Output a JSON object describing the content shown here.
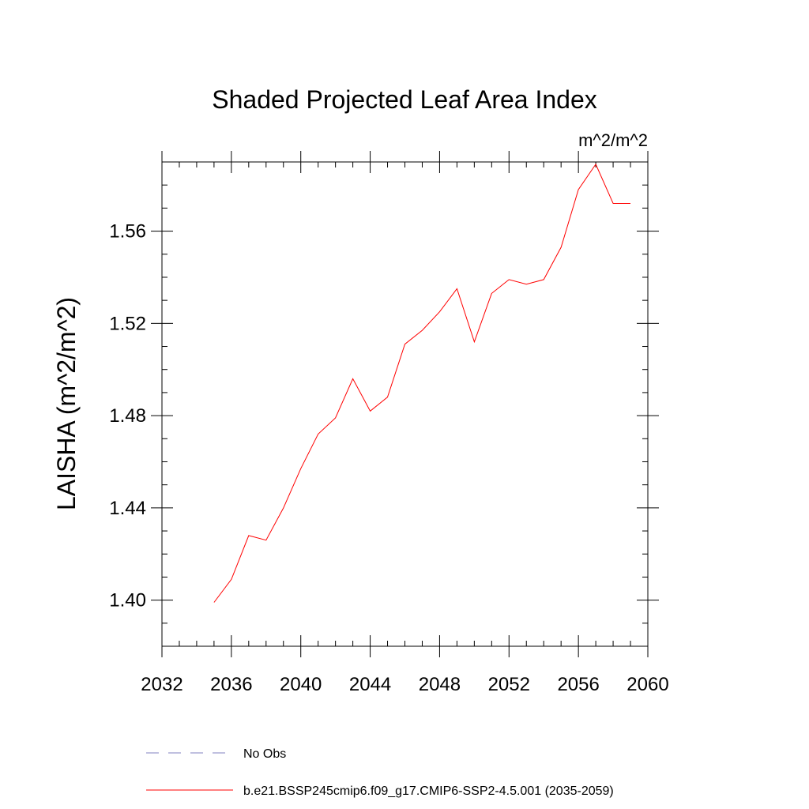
{
  "chart_data": {
    "type": "line",
    "title": "Shaded Projected Leaf Area Index",
    "units_label": "m^2/m^2",
    "ylabel": "LAISHA  (m^2/m^2)",
    "xlabel": "",
    "xlim": [
      2032,
      2060
    ],
    "ylim": [
      1.38,
      1.59
    ],
    "x_ticks": [
      2032,
      2036,
      2040,
      2044,
      2048,
      2052,
      2056,
      2060
    ],
    "x_tick_labels": [
      "2032",
      "2036",
      "2040",
      "2044",
      "2048",
      "2052",
      "2056",
      "2060"
    ],
    "y_ticks": [
      1.4,
      1.44,
      1.48,
      1.52,
      1.56
    ],
    "y_tick_labels": [
      "1.40",
      "1.44",
      "1.48",
      "1.52",
      "1.56"
    ],
    "grid": false,
    "legend_position": "bottom",
    "series": [
      {
        "name": "b.e21.BSSP245cmip6.f09_g17.CMIP6-SSP2-4.5.001 (2035-2059)",
        "color": "#ff0000",
        "dash": "solid",
        "x": [
          2035,
          2036,
          2037,
          2038,
          2039,
          2040,
          2041,
          2042,
          2043,
          2044,
          2045,
          2046,
          2047,
          2048,
          2049,
          2050,
          2051,
          2052,
          2053,
          2054,
          2055,
          2056,
          2057,
          2058,
          2059
        ],
        "y": [
          1.399,
          1.409,
          1.428,
          1.426,
          1.44,
          1.457,
          1.472,
          1.479,
          1.496,
          1.482,
          1.488,
          1.511,
          1.517,
          1.525,
          1.535,
          1.512,
          1.533,
          1.539,
          1.537,
          1.539,
          1.553,
          1.578,
          1.589,
          1.572,
          1.572
        ]
      }
    ],
    "legend": [
      {
        "label": "No Obs",
        "color": "#8080c0",
        "dash": "dashed"
      },
      {
        "label": "b.e21.BSSP245cmip6.f09_g17.CMIP6-SSP2-4.5.001 (2035-2059)",
        "color": "#ff0000",
        "dash": "solid"
      }
    ]
  }
}
